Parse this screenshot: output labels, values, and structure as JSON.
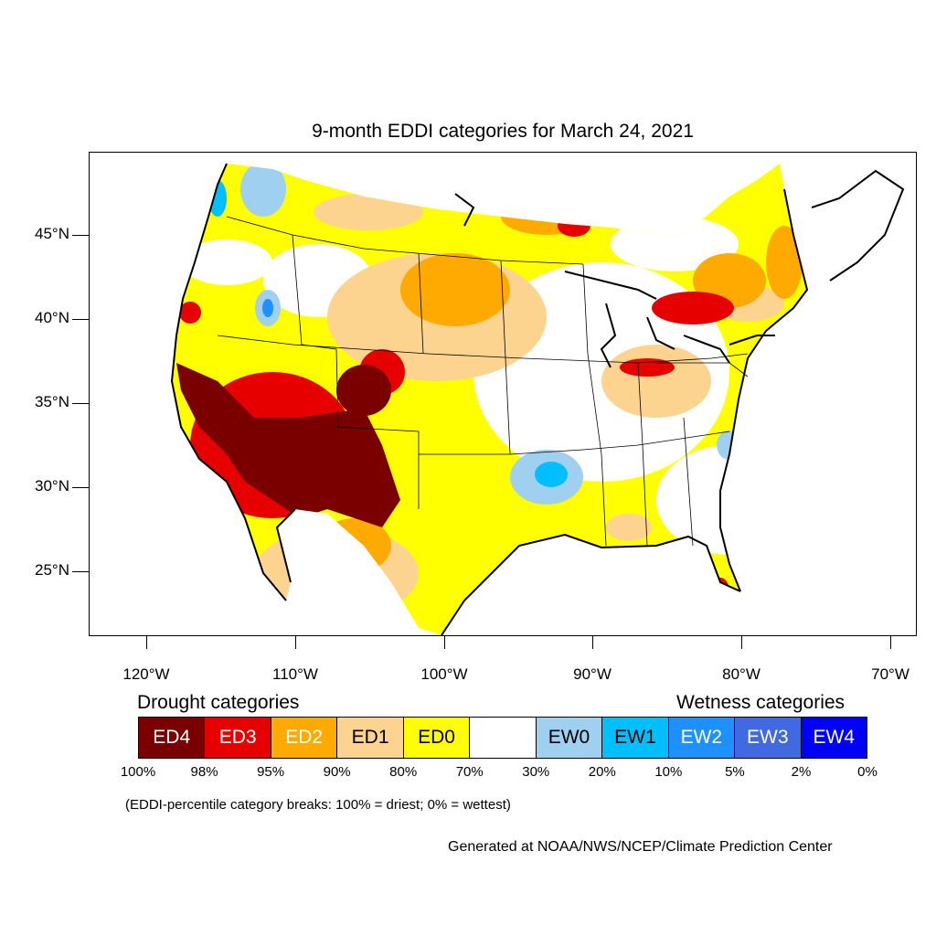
{
  "title": "9-month EDDI categories for March 24, 2021",
  "axes": {
    "lat_labels": [
      "45°N",
      "40°N",
      "35°N",
      "30°N",
      "25°N"
    ],
    "lon_labels": [
      "120°W",
      "110°W",
      "100°W",
      "90°W",
      "80°W",
      "70°W"
    ]
  },
  "legend": {
    "drought_heading": "Drought categories",
    "wetness_heading": "Wetness categories",
    "categories": [
      {
        "label": "ED4",
        "color": "#7a0000",
        "text_color": "#ffffff"
      },
      {
        "label": "ED3",
        "color": "#e60000",
        "text_color": "#ffffff"
      },
      {
        "label": "ED2",
        "color": "#ffaa00",
        "text_color": "#ffffff"
      },
      {
        "label": "ED1",
        "color": "#fcd38f",
        "text_color": "#000000"
      },
      {
        "label": "ED0",
        "color": "#ffff00",
        "text_color": "#000000"
      },
      {
        "label": "",
        "color": "#ffffff",
        "text_color": "#000000"
      },
      {
        "label": "EW0",
        "color": "#9fd0ef",
        "text_color": "#000000"
      },
      {
        "label": "EW1",
        "color": "#00bfff",
        "text_color": "#000000"
      },
      {
        "label": "EW2",
        "color": "#1e90ff",
        "text_color": "#ffffff"
      },
      {
        "label": "EW3",
        "color": "#4169e1",
        "text_color": "#ffffff"
      },
      {
        "label": "EW4",
        "color": "#0000ff",
        "text_color": "#ffffff"
      }
    ],
    "breaks": [
      "100%",
      "98%",
      "95%",
      "90%",
      "80%",
      "70%",
      "30%",
      "20%",
      "10%",
      "5%",
      "2%",
      "0%"
    ]
  },
  "note": "(EDDI-percentile category breaks: 100% = driest; 0% = wettest)",
  "credit": "Generated at NOAA/NWS/NCEP/Climate Prediction Center"
}
